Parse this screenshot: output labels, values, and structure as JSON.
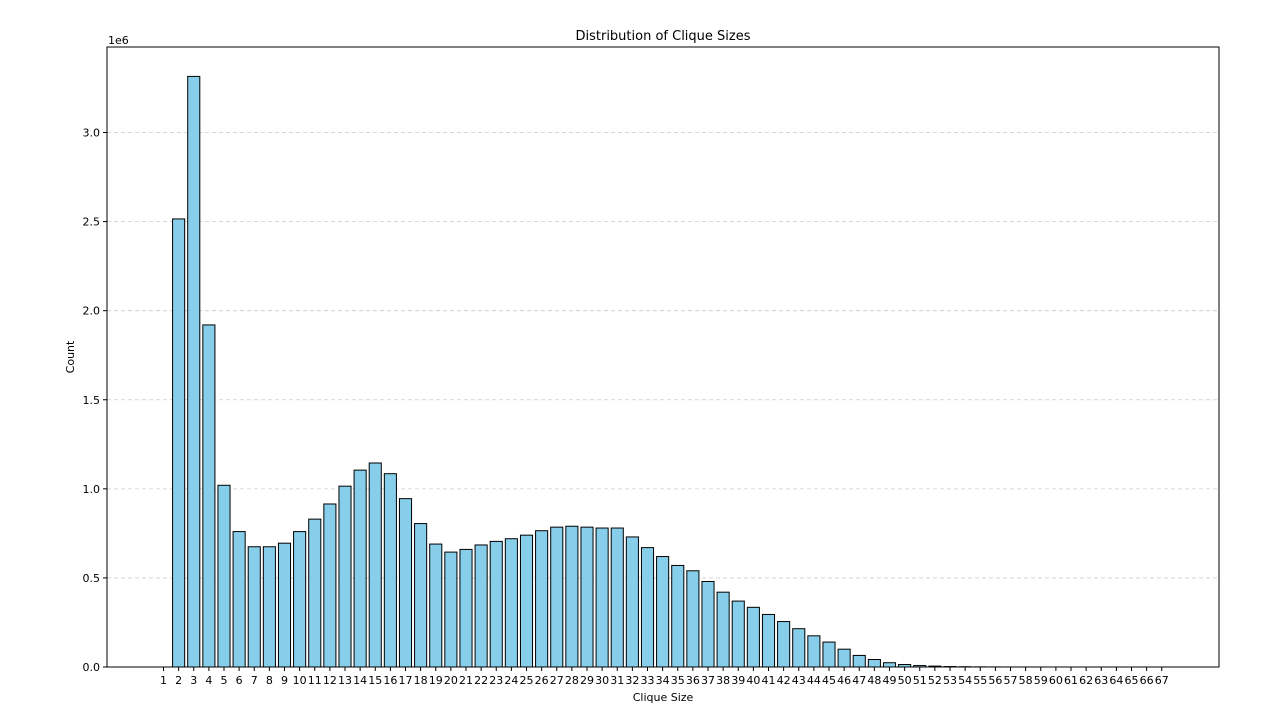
{
  "chart_data": {
    "type": "bar",
    "title": "Distribution of Clique Sizes",
    "xlabel": "Clique Size",
    "ylabel": "Count",
    "y_multiplier_label": "1e6",
    "categories": [
      "1",
      "2",
      "3",
      "4",
      "5",
      "6",
      "7",
      "8",
      "9",
      "10",
      "11",
      "12",
      "13",
      "14",
      "15",
      "16",
      "17",
      "18",
      "19",
      "20",
      "21",
      "22",
      "23",
      "24",
      "25",
      "26",
      "27",
      "28",
      "29",
      "30",
      "31",
      "32",
      "33",
      "34",
      "35",
      "36",
      "37",
      "38",
      "39",
      "40",
      "41",
      "42",
      "43",
      "44",
      "45",
      "46",
      "47",
      "48",
      "49",
      "50",
      "51",
      "52",
      "53",
      "54",
      "55",
      "56",
      "57",
      "58",
      "59",
      "60",
      "61",
      "62",
      "63",
      "64",
      "65",
      "66",
      "67"
    ],
    "values": [
      0,
      2515000,
      3315000,
      1920000,
      1020000,
      760000,
      675000,
      675000,
      695000,
      760000,
      830000,
      915000,
      1015000,
      1105000,
      1145000,
      1085000,
      945000,
      805000,
      690000,
      645000,
      660000,
      685000,
      705000,
      720000,
      740000,
      765000,
      785000,
      790000,
      785000,
      780000,
      780000,
      730000,
      670000,
      620000,
      570000,
      540000,
      480000,
      420000,
      370000,
      335000,
      295000,
      255000,
      215000,
      175000,
      140000,
      100000,
      65000,
      42000,
      24000,
      14000,
      8000,
      5000,
      2500,
      1500,
      800,
      400,
      200,
      100,
      50,
      20,
      10,
      5,
      3,
      2,
      1,
      1,
      1
    ],
    "yticks": [
      0,
      500000,
      1000000,
      1500000,
      2000000,
      2500000,
      3000000
    ],
    "ytick_labels": [
      "0.0",
      "0.5",
      "1.0",
      "1.5",
      "2.0",
      "2.5",
      "3.0"
    ],
    "ylim": [
      0,
      3480000
    ],
    "grid": "y-dashed",
    "colors": {
      "bar_fill": "#87ceeb",
      "bar_edge": "#000000",
      "grid": "#cccccc"
    }
  }
}
